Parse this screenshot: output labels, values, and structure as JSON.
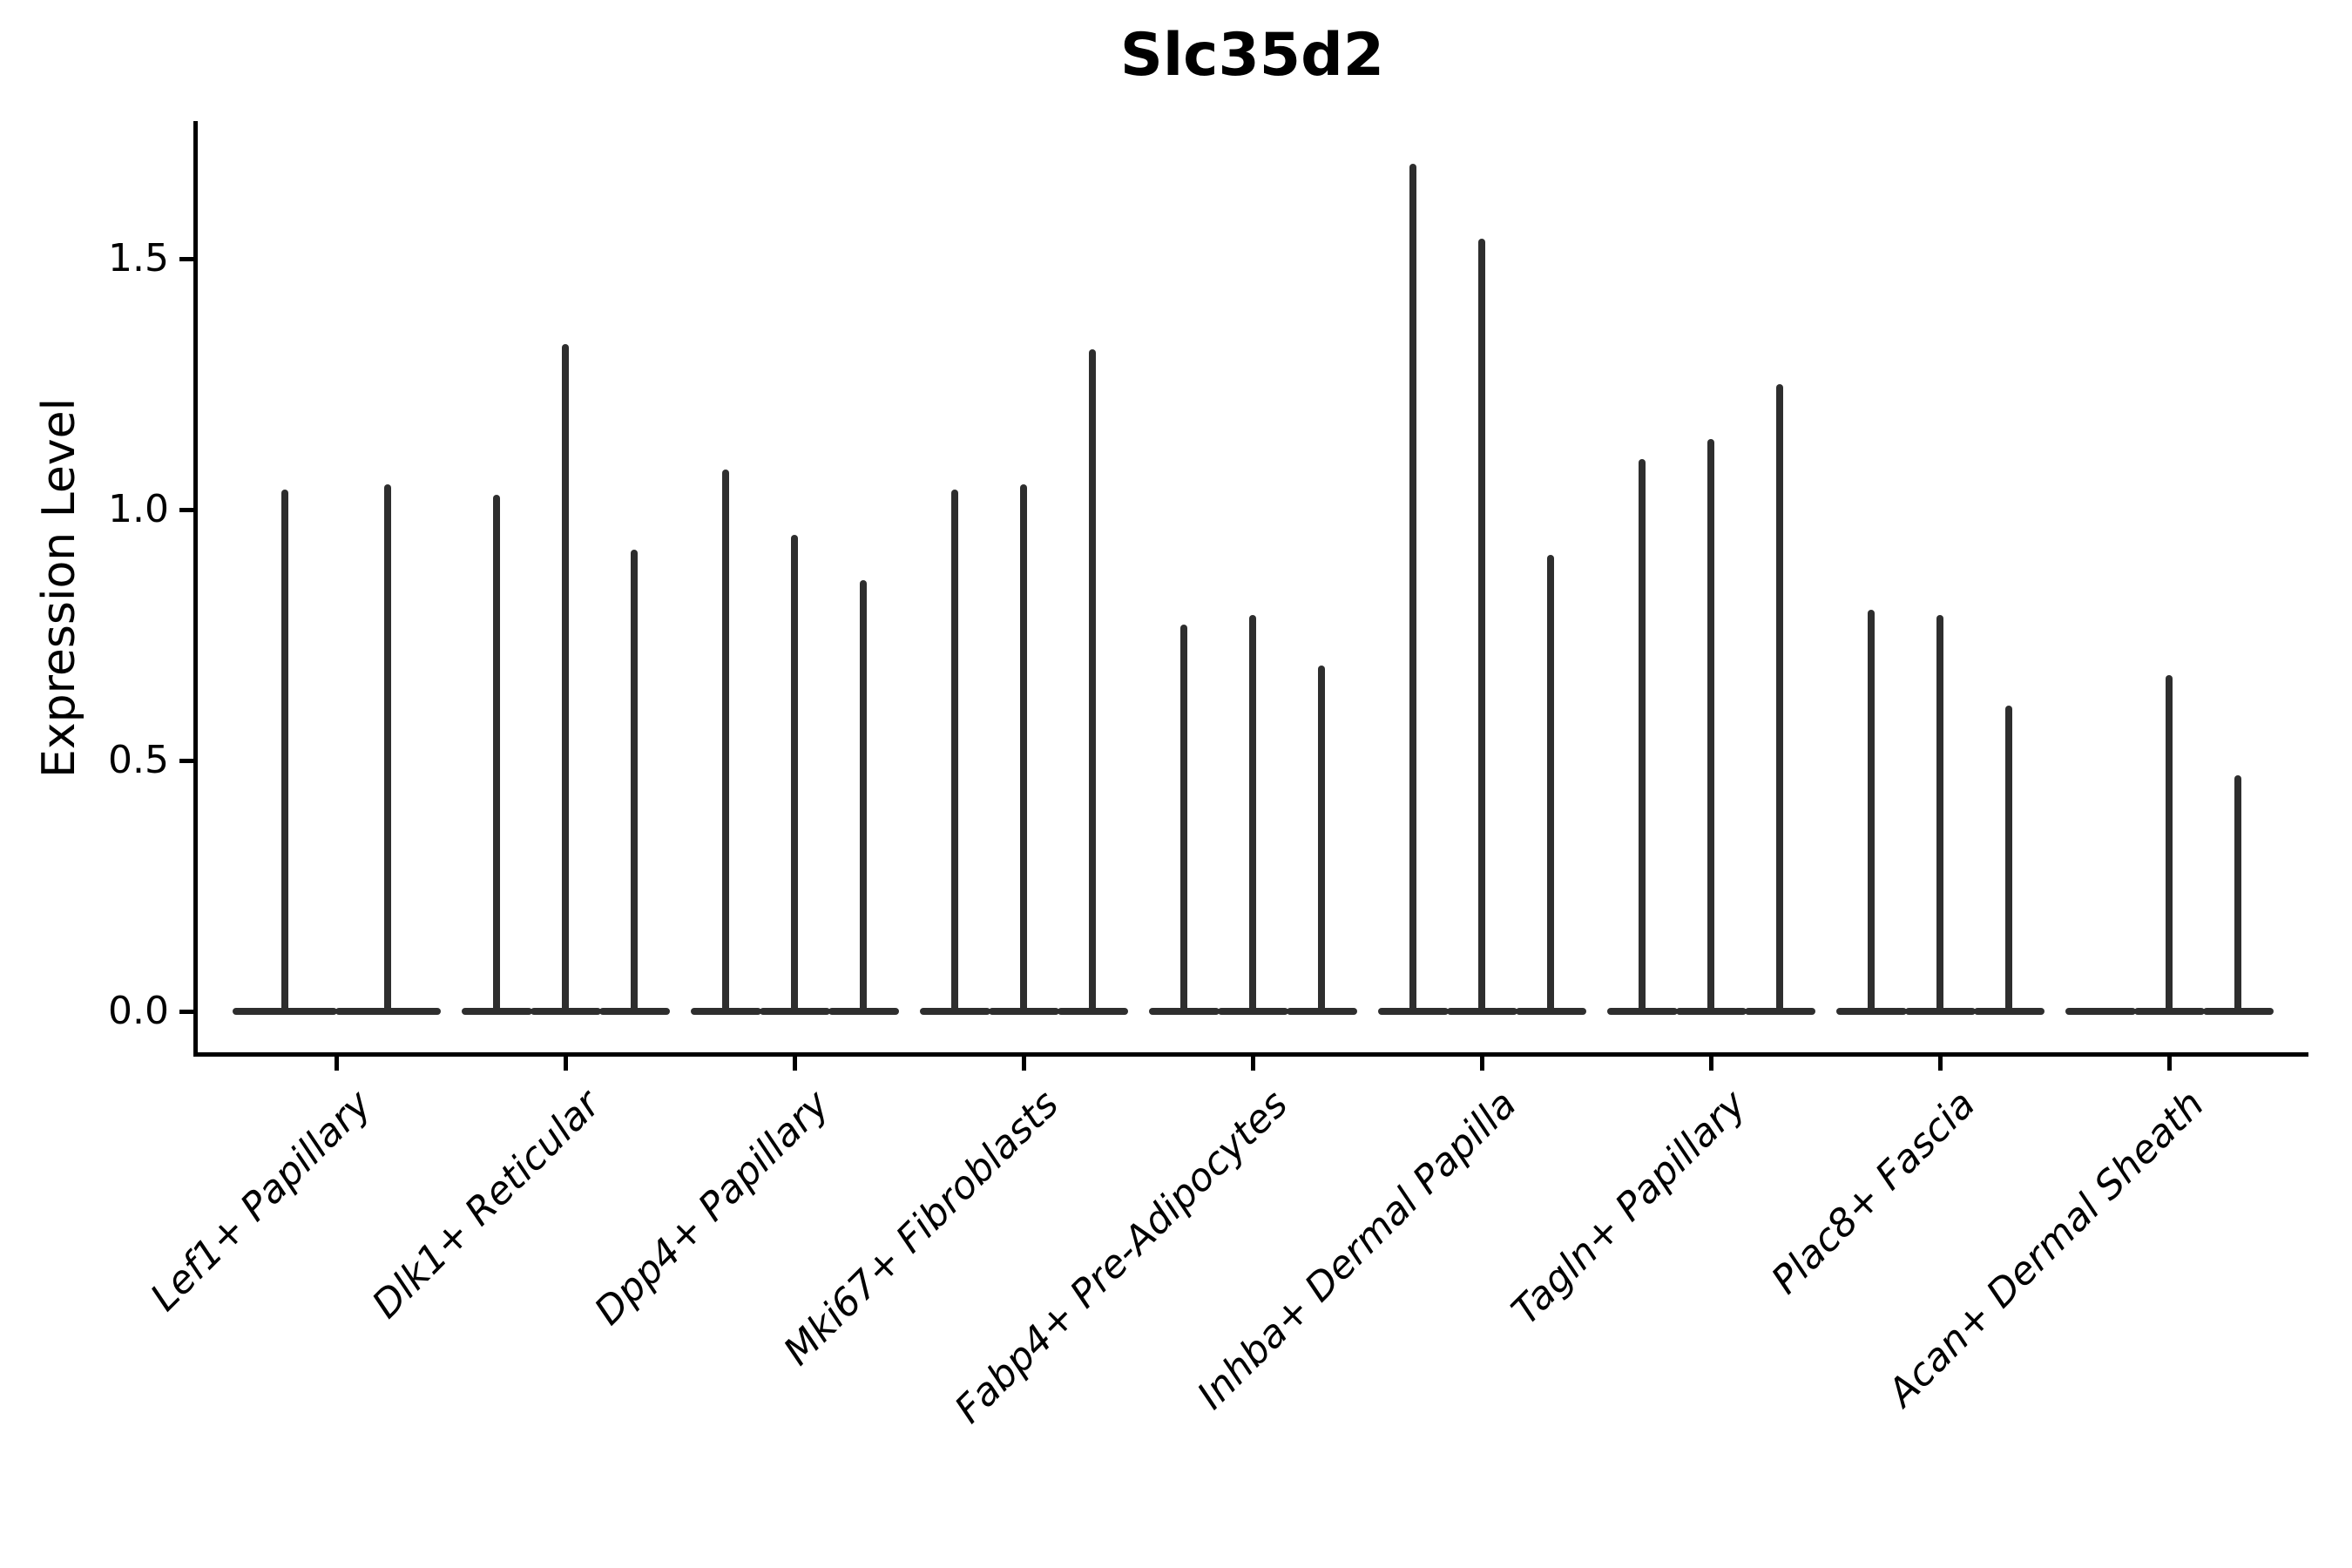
{
  "chart_data": {
    "type": "violin",
    "title": "Slc35d2",
    "xlabel": "",
    "ylabel": "Expression Level",
    "yticks": [
      0.0,
      0.5,
      1.0,
      1.5
    ],
    "ytick_labels": [
      "0.0",
      "0.5",
      "1.0",
      "1.5"
    ],
    "ylim": [
      -0.08,
      1.77
    ],
    "grid": false,
    "legend": "none",
    "line_color": "#2e2e2e",
    "axis_color": "#000000",
    "categories": [
      "Lef1+ Papillary",
      "Dlk1+ Reticular",
      "Dpp4+ Papillary",
      "Mki67+ Fibroblasts",
      "Fabp4+ Pre-Adipocytes",
      "Inhba+ Dermal Papilla",
      "Tagln+ Papillary",
      "Plac8+ Fascia",
      "Acan+ Dermal Sheath"
    ],
    "groups": [
      {
        "category": "Lef1+ Papillary",
        "violin_max_values": [
          1.04,
          1.05
        ]
      },
      {
        "category": "Dlk1+ Reticular",
        "violin_max_values": [
          1.03,
          1.33,
          0.92
        ]
      },
      {
        "category": "Dpp4+ Papillary",
        "violin_max_values": [
          1.08,
          0.95,
          0.86
        ]
      },
      {
        "category": "Mki67+ Fibroblasts",
        "violin_max_values": [
          1.04,
          1.05,
          1.32
        ]
      },
      {
        "category": "Fabp4+ Pre-Adipocytes",
        "violin_max_values": [
          0.77,
          0.79,
          0.69
        ]
      },
      {
        "category": "Inhba+ Dermal Papilla",
        "violin_max_values": [
          1.69,
          1.54,
          0.91
        ]
      },
      {
        "category": "Tagln+ Papillary",
        "violin_max_values": [
          1.1,
          1.14,
          1.25
        ]
      },
      {
        "category": "Plac8+ Fascia",
        "violin_max_values": [
          0.8,
          0.79,
          0.61
        ]
      },
      {
        "category": "Acan+ Dermal Sheath",
        "violin_max_values": [
          0.0,
          0.67,
          0.47
        ]
      }
    ]
  }
}
